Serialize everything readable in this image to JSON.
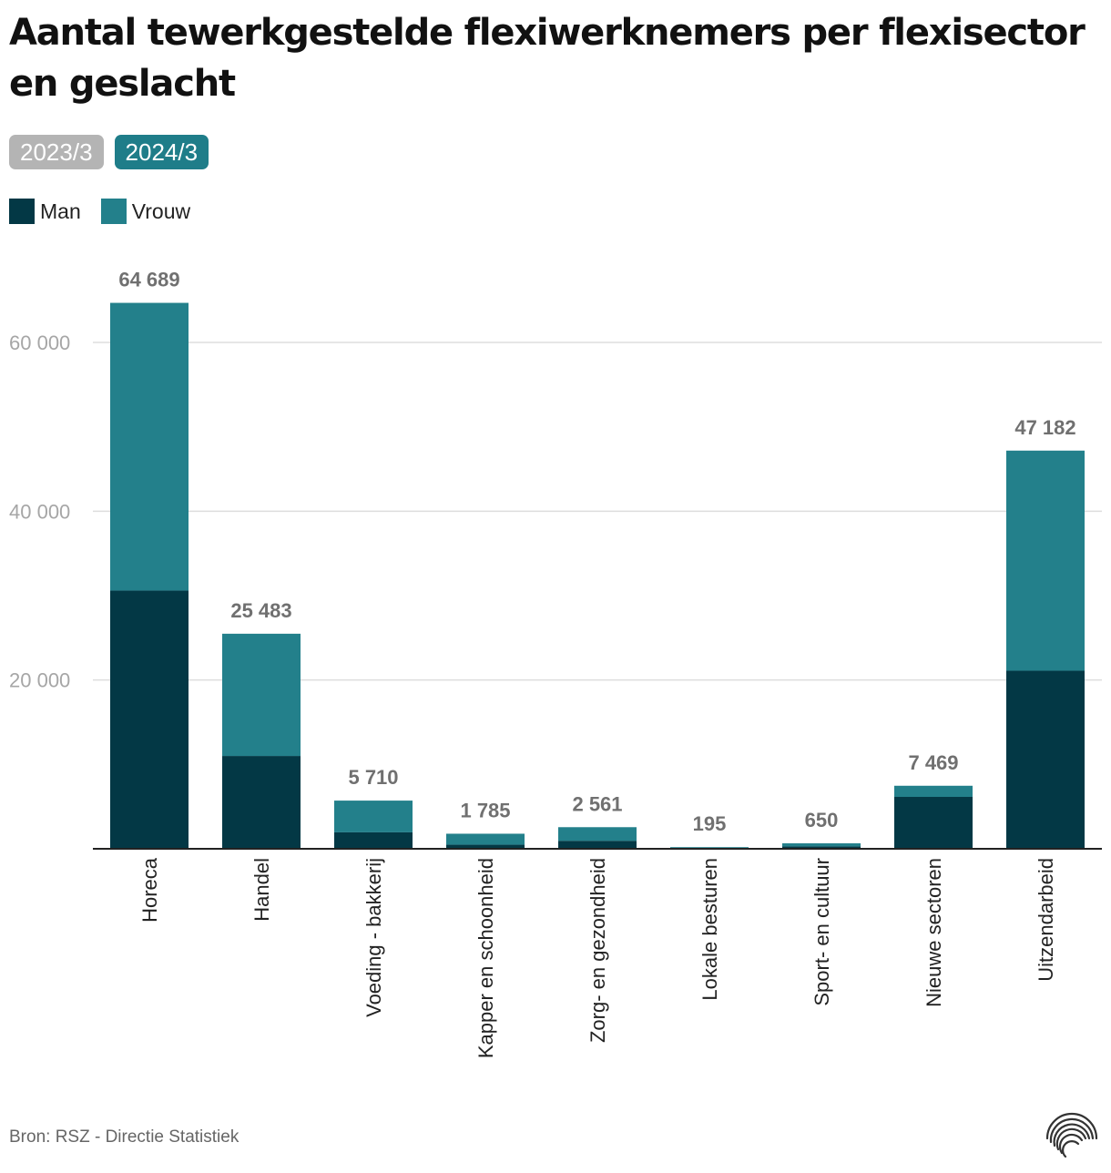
{
  "header": {
    "title": "Aantal tewerkgestelde flexiwerknemers per flexisector en geslacht"
  },
  "period_toggle": {
    "options": [
      {
        "label": "2023/3",
        "selected": false
      },
      {
        "label": "2024/3",
        "selected": true
      }
    ]
  },
  "legend": {
    "items": [
      {
        "label": "Man",
        "color": "#033845"
      },
      {
        "label": "Vrouw",
        "color": "#23808b"
      }
    ]
  },
  "chart_data": {
    "type": "bar",
    "stacked": true,
    "title": "Aantal tewerkgestelde flexiwerknemers per flexisector en geslacht",
    "categories": [
      "Horeca",
      "Handel",
      "Voeding - bakkerij",
      "Kapper en schoonheid",
      "Zorg- en gezondheid",
      "Lokale besturen",
      "Sport- en cultuur",
      "Nieuwe sectoren",
      "Uitzendarbeid"
    ],
    "series": [
      {
        "name": "Man",
        "color": "#033845",
        "values": [
          30600,
          11000,
          1950,
          480,
          950,
          75,
          280,
          6150,
          21100
        ]
      },
      {
        "name": "Vrouw",
        "color": "#23808b",
        "values": [
          34089,
          14483,
          3760,
          1305,
          1611,
          120,
          370,
          1319,
          26082
        ]
      }
    ],
    "totals": [
      64689,
      25483,
      5710,
      1785,
      2561,
      195,
      650,
      7469,
      47182
    ],
    "total_labels": [
      "64 689",
      "25 483",
      "5 710",
      "1 785",
      "2 561",
      "195",
      "650",
      "7 469",
      "47 182"
    ],
    "yticks": [
      20000,
      40000,
      60000
    ],
    "ytick_labels": [
      "20 000",
      "40 000",
      "60 000"
    ],
    "ylim": [
      0,
      60000
    ],
    "xlabel": "",
    "ylabel": "",
    "grid": true,
    "legend_position": "top-left"
  },
  "footer": {
    "source": "Bron: RSZ - Directie Statistiek"
  }
}
